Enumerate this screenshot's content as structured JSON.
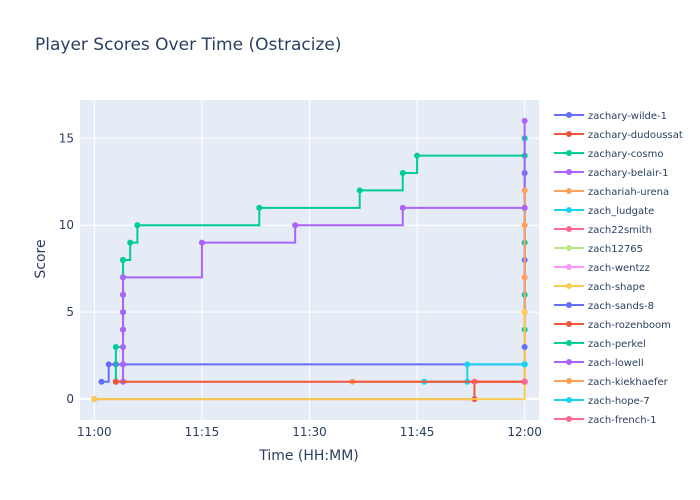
{
  "chart_data": {
    "type": "line",
    "line_shape": "step",
    "title": "Player Scores Over Time (Ostracize)",
    "xlabel": "Time (HH:MM)",
    "ylabel": "Score",
    "xlim": [
      "10:58",
      "12:02"
    ],
    "ylim": [
      -1.2,
      17.2
    ],
    "x_ticks": [
      "11:00",
      "11:15",
      "11:30",
      "11:45",
      "12:00"
    ],
    "y_ticks": [
      0,
      5,
      10,
      15
    ],
    "grid": true,
    "legend_position": "right",
    "series": [
      {
        "name": "zachary-wilde-1",
        "color": "#636efa",
        "x": [
          "11:01",
          "11:02",
          "11:03",
          "11:04",
          "12:00",
          "12:00",
          "12:00"
        ],
        "y": [
          1,
          2,
          2,
          2,
          2,
          8,
          13
        ]
      },
      {
        "name": "zachary-dudoussat",
        "color": "#EF553B",
        "x": [
          "11:00",
          "11:53",
          "11:53",
          "12:00",
          "12:00"
        ],
        "y": [
          0,
          0,
          1,
          1,
          1
        ]
      },
      {
        "name": "zachary-cosmo",
        "color": "#00cc96",
        "x": [
          "11:03",
          "11:03",
          "11:04",
          "11:04",
          "11:04",
          "11:04",
          "11:04",
          "11:04",
          "11:05",
          "11:06",
          "11:23",
          "11:37",
          "11:43",
          "11:45",
          "12:00",
          "12:00",
          "12:00",
          "12:00",
          "12:00"
        ],
        "y": [
          1,
          3,
          4,
          5,
          6,
          7,
          8,
          8,
          9,
          10,
          11,
          12,
          13,
          14,
          14,
          15,
          9,
          6,
          4
        ]
      },
      {
        "name": "zachary-belair-1",
        "color": "#ab63fa",
        "x": [
          "11:04",
          "11:04",
          "11:04",
          "11:04",
          "11:04",
          "11:04",
          "11:04",
          "11:15",
          "11:28",
          "11:43",
          "12:00",
          "12:00",
          "12:00"
        ],
        "y": [
          1,
          2,
          3,
          4,
          5,
          6,
          7,
          9,
          10,
          11,
          11,
          16,
          1
        ]
      },
      {
        "name": "zachariah-urena",
        "color": "#FFA15A",
        "x": [
          "11:36",
          "11:53",
          "12:00",
          "12:00"
        ],
        "y": [
          1,
          1,
          12,
          10
        ]
      },
      {
        "name": "zach_ludgate",
        "color": "#19d3f3",
        "x": [
          "11:46",
          "11:52",
          "11:52",
          "12:00"
        ],
        "y": [
          1,
          1,
          2,
          2
        ]
      },
      {
        "name": "zach22smith",
        "color": "#FF6692",
        "x": [
          "11:53",
          "12:00"
        ],
        "y": [
          1,
          1
        ]
      },
      {
        "name": "zach12765",
        "color": "#B6E880",
        "x": [
          "12:00"
        ],
        "y": [
          5
        ]
      },
      {
        "name": "zach-wentzz",
        "color": "#FF97FF",
        "x": [
          "12:00"
        ],
        "y": [
          7
        ]
      },
      {
        "name": "zach-shape",
        "color": "#FECB52",
        "x": [
          "11:00",
          "12:00"
        ],
        "y": [
          0,
          5
        ]
      },
      {
        "name": "zach-sands-8",
        "color": "#636efa",
        "x": [
          "12:00"
        ],
        "y": [
          3
        ]
      },
      {
        "name": "zach-rozenboom",
        "color": "#EF553B",
        "x": [
          "11:03",
          "12:00"
        ],
        "y": [
          1,
          1
        ]
      },
      {
        "name": "zach-perkel",
        "color": "#00cc96",
        "x": [
          "12:00"
        ],
        "y": [
          2
        ]
      },
      {
        "name": "zach-lowell",
        "color": "#ab63fa",
        "x": [
          "12:00"
        ],
        "y": [
          11
        ]
      },
      {
        "name": "zach-kiekhaefer",
        "color": "#FFA15A",
        "x": [
          "12:00"
        ],
        "y": [
          7
        ]
      },
      {
        "name": "zach-hope-7",
        "color": "#19d3f3",
        "x": [
          "12:00"
        ],
        "y": [
          2
        ]
      },
      {
        "name": "zach-french-1",
        "color": "#FF6692",
        "x": [
          "12:00"
        ],
        "y": [
          1
        ]
      }
    ]
  }
}
